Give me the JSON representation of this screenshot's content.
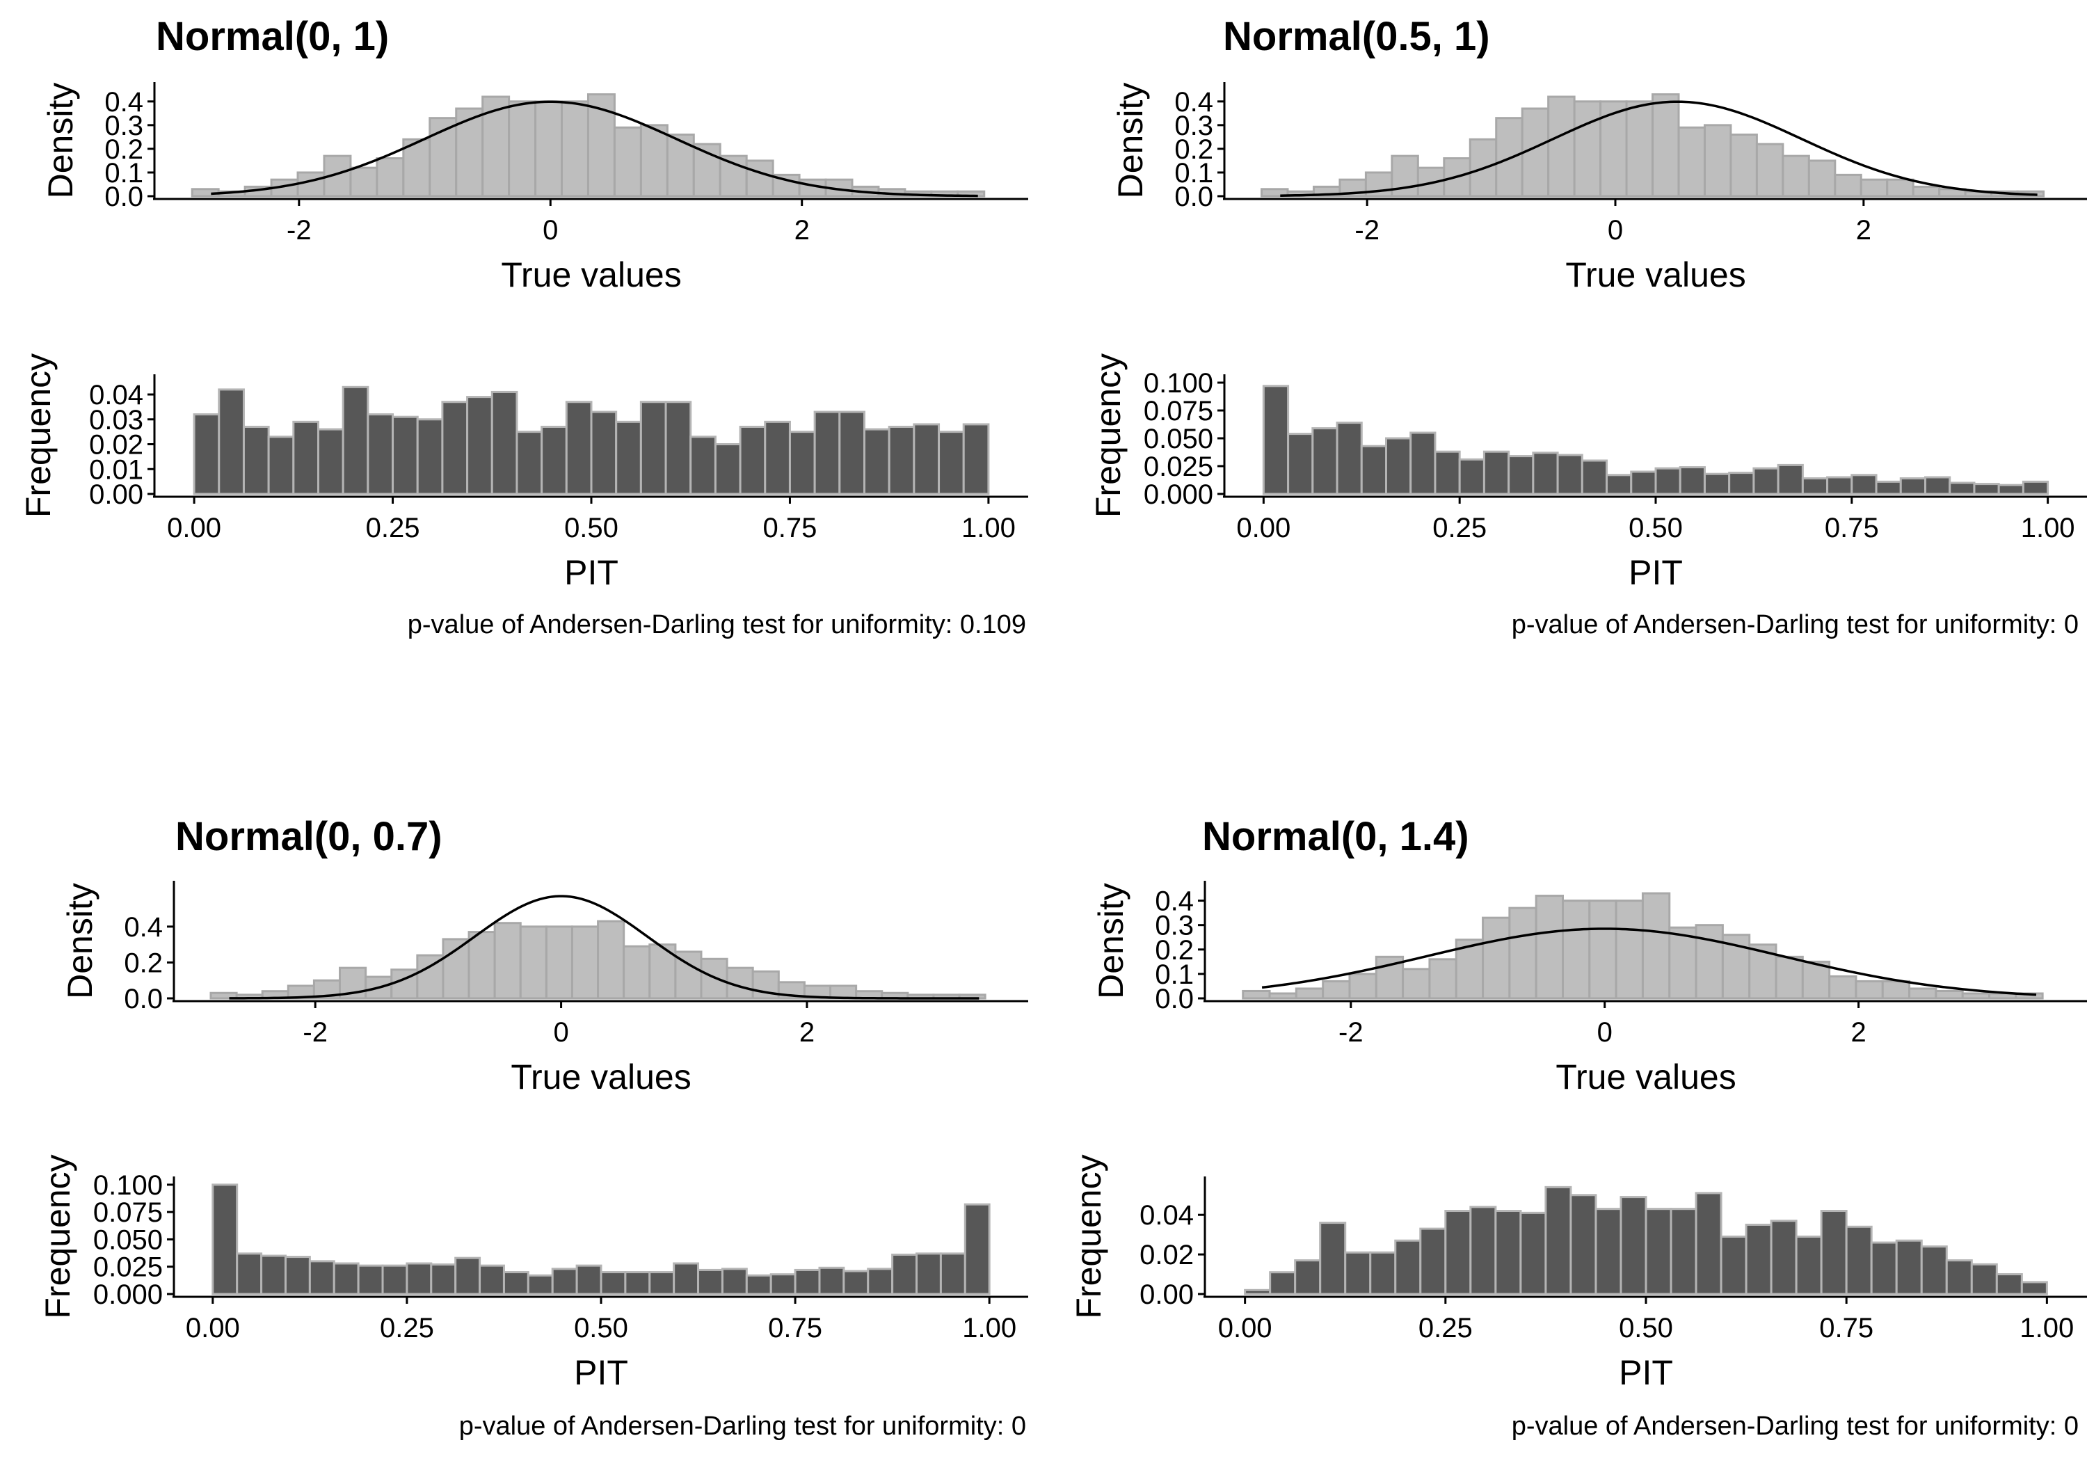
{
  "bar_colors": {
    "density_fill": "#bebebe",
    "density_stroke": "#a8a8a8",
    "pit_fill": "#575757",
    "pit_stroke": "#b4b4b4",
    "curve": "#000000"
  },
  "chart_data": [
    {
      "type": "bar",
      "panel": "Normal(0, 1) - true values",
      "title": "Normal(0, 1)",
      "xlabel": "True values",
      "ylabel": "Density",
      "xlim": [
        -3.15,
        3.8
      ],
      "ylim": [
        0,
        0.47
      ],
      "xticks": [
        -2,
        0,
        2
      ],
      "xtick_labels": [
        "-2",
        "0",
        "2"
      ],
      "yticks": [
        0,
        0.1,
        0.2,
        0.3,
        0.4
      ],
      "ytick_labels": [
        "0.0",
        "0.1",
        "0.2",
        "0.3",
        "0.4"
      ],
      "bin_start": -2.85,
      "bin_width": 0.21,
      "values": [
        0.03,
        0.02,
        0.04,
        0.07,
        0.1,
        0.17,
        0.12,
        0.16,
        0.24,
        0.33,
        0.37,
        0.42,
        0.4,
        0.4,
        0.4,
        0.43,
        0.29,
        0.3,
        0.26,
        0.22,
        0.17,
        0.15,
        0.09,
        0.07,
        0.07,
        0.04,
        0.03,
        0.02,
        0.02,
        0.02
      ],
      "curve": {
        "mean": 0,
        "sd": 1,
        "x_range": [
          -2.7,
          3.4
        ]
      }
    },
    {
      "type": "bar",
      "panel": "Normal(0, 1) - PIT",
      "xlabel": "PIT",
      "ylabel": "Frequency",
      "xlim": [
        -0.05,
        1.05
      ],
      "ylim": [
        0,
        0.047
      ],
      "xticks": [
        0,
        0.25,
        0.5,
        0.75,
        1
      ],
      "xtick_labels": [
        "0.00",
        "0.25",
        "0.50",
        "0.75",
        "1.00"
      ],
      "yticks": [
        0,
        0.01,
        0.02,
        0.03,
        0.04
      ],
      "ytick_labels": [
        "0.00",
        "0.01",
        "0.02",
        "0.03",
        "0.04"
      ],
      "bin_start": 0,
      "bin_width": 0.03125,
      "values": [
        0.032,
        0.042,
        0.027,
        0.023,
        0.029,
        0.026,
        0.043,
        0.032,
        0.031,
        0.03,
        0.037,
        0.039,
        0.041,
        0.025,
        0.027,
        0.037,
        0.033,
        0.029,
        0.037,
        0.037,
        0.023,
        0.02,
        0.027,
        0.029,
        0.025,
        0.033,
        0.033,
        0.026,
        0.027,
        0.028,
        0.025,
        0.028
      ],
      "annotation": "p-value of Andersen-Darling test for uniformity: 0.109"
    },
    {
      "type": "bar",
      "panel": "Normal(0.5, 1) - true values",
      "title": "Normal(0.5, 1)",
      "xlabel": "True values",
      "ylabel": "Density",
      "xlim": [
        -3.15,
        3.8
      ],
      "ylim": [
        0,
        0.47
      ],
      "xticks": [
        -2,
        0,
        2
      ],
      "xtick_labels": [
        "-2",
        "0",
        "2"
      ],
      "yticks": [
        0,
        0.1,
        0.2,
        0.3,
        0.4
      ],
      "ytick_labels": [
        "0.0",
        "0.1",
        "0.2",
        "0.3",
        "0.4"
      ],
      "bin_start": -2.85,
      "bin_width": 0.21,
      "values": [
        0.03,
        0.02,
        0.04,
        0.07,
        0.1,
        0.17,
        0.12,
        0.16,
        0.24,
        0.33,
        0.37,
        0.42,
        0.4,
        0.4,
        0.4,
        0.43,
        0.29,
        0.3,
        0.26,
        0.22,
        0.17,
        0.15,
        0.09,
        0.07,
        0.07,
        0.04,
        0.03,
        0.02,
        0.02,
        0.02
      ],
      "curve": {
        "mean": 0.5,
        "sd": 1,
        "x_range": [
          -2.7,
          3.4
        ]
      }
    },
    {
      "type": "bar",
      "panel": "Normal(0.5, 1) - PIT",
      "xlabel": "PIT",
      "ylabel": "Frequency",
      "xlim": [
        -0.05,
        1.05
      ],
      "ylim": [
        0,
        0.105
      ],
      "xticks": [
        0,
        0.25,
        0.5,
        0.75,
        1
      ],
      "xtick_labels": [
        "0.00",
        "0.25",
        "0.50",
        "0.75",
        "1.00"
      ],
      "yticks": [
        0,
        0.025,
        0.05,
        0.075,
        0.1
      ],
      "ytick_labels": [
        "0.000",
        "0.025",
        "0.050",
        "0.075",
        "0.100"
      ],
      "bin_start": 0,
      "bin_width": 0.03125,
      "values": [
        0.097,
        0.054,
        0.059,
        0.064,
        0.043,
        0.05,
        0.055,
        0.038,
        0.031,
        0.038,
        0.034,
        0.037,
        0.035,
        0.03,
        0.017,
        0.02,
        0.023,
        0.024,
        0.018,
        0.019,
        0.023,
        0.026,
        0.014,
        0.015,
        0.017,
        0.011,
        0.014,
        0.015,
        0.01,
        0.009,
        0.008,
        0.011
      ],
      "annotation": "p-value of Andersen-Darling test for uniformity: 0"
    },
    {
      "type": "bar",
      "panel": "Normal(0, 0.7) - true values",
      "title": "Normal(0, 0.7)",
      "xlabel": "True values",
      "ylabel": "Density",
      "xlim": [
        -3.15,
        3.8
      ],
      "ylim": [
        0,
        0.64
      ],
      "xticks": [
        -2,
        0,
        2
      ],
      "xtick_labels": [
        "-2",
        "0",
        "2"
      ],
      "yticks": [
        0,
        0.2,
        0.4
      ],
      "ytick_labels": [
        "0.0",
        "0.2",
        "0.4"
      ],
      "bin_start": -2.85,
      "bin_width": 0.21,
      "values": [
        0.03,
        0.02,
        0.04,
        0.07,
        0.1,
        0.17,
        0.12,
        0.16,
        0.24,
        0.33,
        0.37,
        0.42,
        0.4,
        0.4,
        0.4,
        0.43,
        0.29,
        0.3,
        0.26,
        0.22,
        0.17,
        0.15,
        0.09,
        0.07,
        0.07,
        0.04,
        0.03,
        0.02,
        0.02,
        0.02
      ],
      "curve": {
        "mean": 0,
        "sd": 0.7,
        "x_range": [
          -2.7,
          3.4
        ]
      }
    },
    {
      "type": "bar",
      "panel": "Normal(0, 0.7) - PIT",
      "xlabel": "PIT",
      "ylabel": "Frequency",
      "xlim": [
        -0.05,
        1.05
      ],
      "ylim": [
        0,
        0.105
      ],
      "xticks": [
        0,
        0.25,
        0.5,
        0.75,
        1
      ],
      "xtick_labels": [
        "0.00",
        "0.25",
        "0.50",
        "0.75",
        "1.00"
      ],
      "yticks": [
        0,
        0.025,
        0.05,
        0.075,
        0.1
      ],
      "ytick_labels": [
        "0.000",
        "0.025",
        "0.050",
        "0.075",
        "0.100"
      ],
      "bin_start": 0,
      "bin_width": 0.03125,
      "values": [
        0.1,
        0.037,
        0.035,
        0.034,
        0.03,
        0.028,
        0.026,
        0.026,
        0.028,
        0.027,
        0.033,
        0.026,
        0.02,
        0.017,
        0.023,
        0.026,
        0.02,
        0.02,
        0.02,
        0.028,
        0.022,
        0.023,
        0.017,
        0.018,
        0.022,
        0.024,
        0.021,
        0.023,
        0.036,
        0.037,
        0.037,
        0.082
      ],
      "annotation": "p-value of Andersen-Darling test for uniformity: 0"
    },
    {
      "type": "bar",
      "panel": "Normal(0, 1.4) - true values",
      "title": "Normal(0, 1.4)",
      "xlabel": "True values",
      "ylabel": "Density",
      "xlim": [
        -3.15,
        3.8
      ],
      "ylim": [
        0,
        0.47
      ],
      "xticks": [
        -2,
        0,
        2
      ],
      "xtick_labels": [
        "-2",
        "0",
        "2"
      ],
      "yticks": [
        0,
        0.1,
        0.2,
        0.3,
        0.4
      ],
      "ytick_labels": [
        "0.0",
        "0.1",
        "0.2",
        "0.3",
        "0.4"
      ],
      "bin_start": -2.85,
      "bin_width": 0.21,
      "values": [
        0.03,
        0.02,
        0.04,
        0.07,
        0.1,
        0.17,
        0.12,
        0.16,
        0.24,
        0.33,
        0.37,
        0.42,
        0.4,
        0.4,
        0.4,
        0.43,
        0.29,
        0.3,
        0.26,
        0.22,
        0.17,
        0.15,
        0.09,
        0.07,
        0.07,
        0.04,
        0.03,
        0.02,
        0.02,
        0.02
      ],
      "curve": {
        "mean": 0,
        "sd": 1.4,
        "x_range": [
          -2.7,
          3.4
        ]
      }
    },
    {
      "type": "bar",
      "panel": "Normal(0, 1.4) - PIT",
      "xlabel": "PIT",
      "ylabel": "Frequency",
      "xlim": [
        -0.05,
        1.05
      ],
      "ylim": [
        0,
        0.058
      ],
      "xticks": [
        0,
        0.25,
        0.5,
        0.75,
        1
      ],
      "xtick_labels": [
        "0.00",
        "0.25",
        "0.50",
        "0.75",
        "1.00"
      ],
      "yticks": [
        0,
        0.02,
        0.04
      ],
      "ytick_labels": [
        "0.00",
        "0.02",
        "0.04"
      ],
      "bin_start": 0,
      "bin_width": 0.03125,
      "values": [
        0.002,
        0.011,
        0.017,
        0.036,
        0.021,
        0.021,
        0.027,
        0.033,
        0.042,
        0.044,
        0.042,
        0.041,
        0.054,
        0.05,
        0.043,
        0.049,
        0.043,
        0.043,
        0.051,
        0.029,
        0.035,
        0.037,
        0.029,
        0.042,
        0.034,
        0.026,
        0.027,
        0.024,
        0.017,
        0.015,
        0.01,
        0.006
      ],
      "annotation": "p-value of Andersen-Darling test for uniformity: 0"
    }
  ]
}
